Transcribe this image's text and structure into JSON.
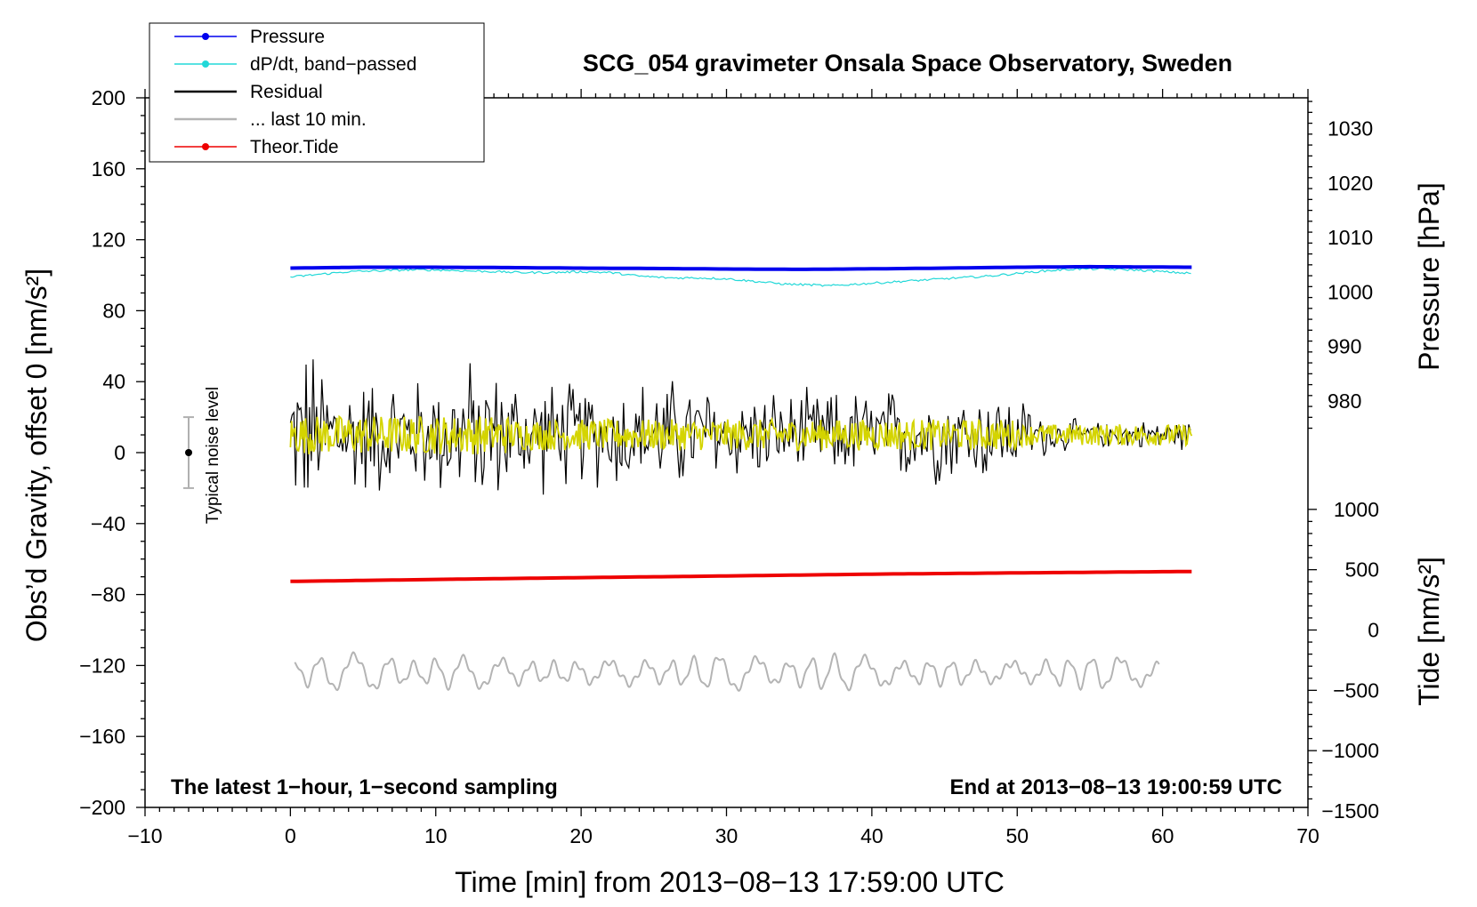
{
  "chart_data": {
    "type": "line",
    "title": "SCG_054 gravimeter Onsala Space Observatory, Sweden",
    "xlabel": "Time [min] from 2013−08−13 17:59:00 UTC",
    "ylabel_left": "Obs’d Gravity, offset 0 [nm/s²]",
    "ylabel_right_pressure": "Pressure [hPa]",
    "ylabel_right_tide": "Tide [nm/s²]",
    "xlim": [
      -10,
      70
    ],
    "ylim": [
      -200,
      200
    ],
    "x_ticks": [
      -10,
      0,
      10,
      20,
      30,
      40,
      50,
      60,
      70
    ],
    "x_tick_labels": [
      "−10",
      "0",
      "10",
      "20",
      "30",
      "40",
      "50",
      "60",
      "70"
    ],
    "y_ticks": [
      200,
      160,
      120,
      80,
      40,
      0,
      -40,
      -80,
      -120,
      -160,
      -200
    ],
    "y_tick_labels": [
      "200",
      "160",
      "120",
      "80",
      "40",
      "0",
      "−40",
      "−80",
      "−120",
      "−160",
      "−200"
    ],
    "pressure_axis": {
      "ticks": [
        1030,
        1020,
        1010,
        1000,
        990,
        980
      ],
      "tick_labels": [
        "1030",
        "1020",
        "1010",
        "1000",
        "990",
        "980"
      ],
      "gravity_at_1000": 90.5,
      "gravity_per_hpa": 3.07
    },
    "tide_axis": {
      "ticks": [
        1000,
        500,
        0,
        -500,
        -1000,
        -1500
      ],
      "tick_labels": [
        "1000",
        "500",
        "0",
        "−500",
        "−1000",
        "−1500"
      ],
      "gravity_at_0": -100,
      "gravity_per_unit": 0.068
    },
    "legend": {
      "placement": "top-left",
      "entries": [
        {
          "label": "Pressure",
          "color": "#0000ee",
          "marker": true
        },
        {
          "label": "dP/dt, band−passed",
          "color": "#22d8d8",
          "marker": true
        },
        {
          "label": "Residual",
          "color": "#000000",
          "marker": false
        },
        {
          "label": "... last 10 min.",
          "color": "#b4b4b4",
          "marker": false
        },
        {
          "label": "Theor.Tide",
          "color": "#ee0000",
          "marker": true
        }
      ]
    },
    "series": [
      {
        "name": "Pressure",
        "color": "#0000ee",
        "x": [
          0,
          5,
          10,
          15,
          20,
          25,
          30,
          35,
          40,
          45,
          50,
          55,
          60,
          62
        ],
        "y": [
          104,
          104.5,
          104.5,
          104.3,
          104,
          103.8,
          103.5,
          103.3,
          103.6,
          104,
          104.5,
          104.8,
          104.6,
          104.5
        ]
      },
      {
        "name": "dP/dt, band−passed",
        "color": "#22d8d8",
        "x": [
          0,
          2,
          4,
          6,
          8,
          10,
          12,
          14,
          16,
          18,
          20,
          22,
          24,
          26,
          28,
          30,
          32,
          34,
          36,
          37,
          38,
          40,
          42,
          44,
          46,
          48,
          50,
          52,
          54,
          56,
          58,
          60,
          62
        ],
        "y": [
          99,
          100.5,
          102,
          102.5,
          103,
          103,
          102.5,
          102,
          101.5,
          101.5,
          102,
          101.5,
          99.5,
          98.5,
          98.5,
          98,
          96.5,
          95,
          94.5,
          94,
          94.5,
          95.5,
          96.5,
          97.5,
          98.5,
          99.5,
          101,
          102.5,
          103.5,
          103.5,
          103,
          102,
          101
        ]
      },
      {
        "name": "Residual",
        "color": "#000000",
        "x_range": [
          0,
          62
        ],
        "envelope_x": [
          0,
          1,
          3,
          5,
          10,
          12,
          15,
          20,
          25,
          28,
          30,
          35,
          40,
          45,
          48,
          50,
          52,
          55,
          60,
          62
        ],
        "envelope_amp": [
          40,
          60,
          44,
          40,
          38,
          50,
          40,
          34,
          38,
          36,
          30,
          28,
          30,
          32,
          30,
          26,
          14,
          8,
          10,
          10
        ],
        "center": 10
      },
      {
        "name": "... last 10 min.",
        "color": "#b4b4b4",
        "x_range": [
          0.3,
          59.8
        ],
        "center": -124,
        "amp": 8
      },
      {
        "name": "Theor.Tide",
        "color": "#ee0000",
        "x": [
          0,
          10,
          20,
          30,
          40,
          50,
          62
        ],
        "y": [
          -72.6,
          -71.5,
          -70.5,
          -69.5,
          -68.5,
          -67.8,
          -67
        ]
      },
      {
        "name": "Band-passed residual",
        "color": "#d4d400",
        "x_range": [
          0,
          62
        ],
        "center": 10,
        "amp": 11
      }
    ],
    "noise_bar": {
      "x": -7,
      "y": 0,
      "low": -20,
      "high": 20,
      "label": "Typical noise level"
    },
    "annotations": {
      "left": "The latest 1−hour, 1−second sampling",
      "right": "End at 2013−08−13 19:00:59 UTC"
    }
  }
}
